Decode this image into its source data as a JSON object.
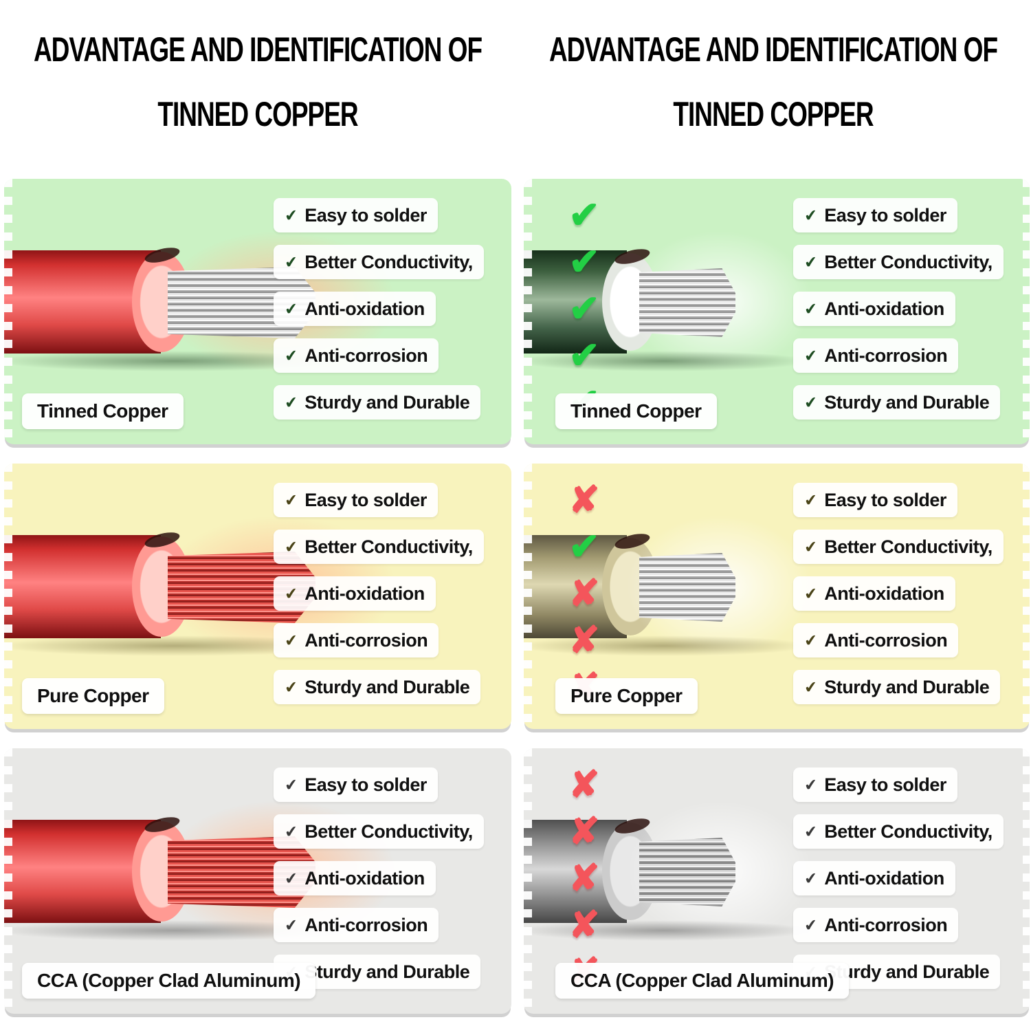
{
  "title": {
    "line1": "ADVANTAGE AND IDENTIFICATION OF",
    "line2": "TINNED COPPER"
  },
  "features": [
    "Easy to solder",
    "Better Conductivity,",
    "Anti-oxidation",
    "Anti-corrosion",
    "Sturdy and Durable"
  ],
  "icons": {
    "bullet": "✔",
    "check": "✔",
    "cross": "✘"
  },
  "panels": [
    {
      "key": "tinned-copper",
      "label": "Tinned Copper",
      "marks": [
        "✔",
        "✔",
        "✔",
        "✔",
        "✔"
      ]
    },
    {
      "key": "pure-copper",
      "label": "Pure Copper",
      "marks": [
        "✘",
        "✔",
        "✘",
        "✘",
        "✘"
      ]
    },
    {
      "key": "cca",
      "label": "CCA (Copper Clad Aluminum)",
      "marks": [
        "✘",
        "✘",
        "✘",
        "✘",
        "✘"
      ]
    }
  ],
  "colors": {
    "check": "#23cf45",
    "cross": "#f4555b",
    "panel_green": "#cbf2c4",
    "panel_yellow": "#f8f3bd",
    "panel_gray": "#e8e8e6",
    "wire_red": "#e03a3c",
    "wire_dark_green": "#3c5f3e",
    "wire_tan": "#a39b72",
    "wire_gray": "#909090",
    "strand_silver": "#cfcfcf",
    "strand_copper": "#e0514b"
  }
}
